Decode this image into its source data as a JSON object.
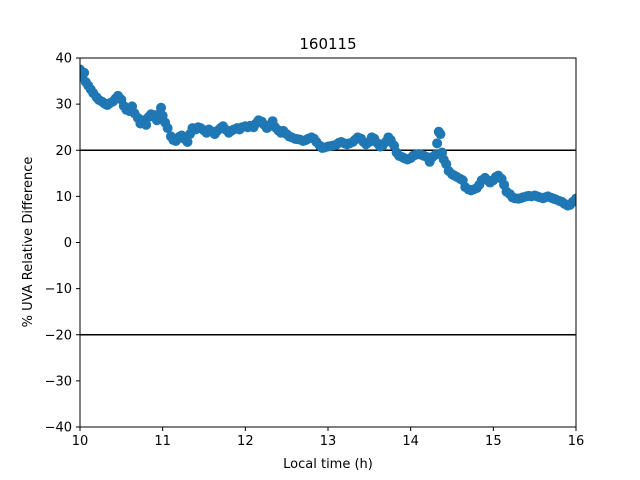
{
  "chart_data": {
    "type": "scatter",
    "title": "160115",
    "xlabel": "Local time (h)",
    "ylabel": "% UVA Relative Difference",
    "xlim": [
      10,
      16
    ],
    "ylim": [
      -40,
      40
    ],
    "xticks": [
      10,
      11,
      12,
      13,
      14,
      15,
      16
    ],
    "yticks": [
      -40,
      -30,
      -20,
      -10,
      0,
      10,
      20,
      30,
      40
    ],
    "grid": false,
    "reference_lines_y": [
      20,
      -20
    ],
    "colors": {
      "marker": "#1f77b4",
      "reference_line": "#000000",
      "axes": "#000000"
    },
    "series": [
      {
        "points": [
          [
            10.0,
            37.5
          ],
          [
            10.02,
            36.0
          ],
          [
            10.05,
            36.8
          ],
          [
            10.07,
            34.8
          ],
          [
            10.1,
            34.0
          ],
          [
            10.13,
            33.2
          ],
          [
            10.16,
            32.4
          ],
          [
            10.2,
            31.5
          ],
          [
            10.23,
            30.9
          ],
          [
            10.27,
            30.5
          ],
          [
            10.3,
            30.1
          ],
          [
            10.33,
            29.8
          ],
          [
            10.36,
            30.2
          ],
          [
            10.4,
            30.6
          ],
          [
            10.43,
            31.2
          ],
          [
            10.46,
            31.8
          ],
          [
            10.5,
            31.0
          ],
          [
            10.53,
            29.6
          ],
          [
            10.56,
            28.8
          ],
          [
            10.6,
            28.5
          ],
          [
            10.63,
            29.5
          ],
          [
            10.66,
            28.0
          ],
          [
            10.7,
            27.0
          ],
          [
            10.73,
            25.8
          ],
          [
            10.77,
            26.5
          ],
          [
            10.8,
            25.5
          ],
          [
            10.83,
            27.2
          ],
          [
            10.86,
            27.8
          ],
          [
            10.9,
            27.6
          ],
          [
            10.93,
            26.5
          ],
          [
            10.96,
            27.9
          ],
          [
            10.98,
            29.2
          ],
          [
            11.0,
            27.5
          ],
          [
            11.03,
            26.0
          ],
          [
            11.06,
            24.8
          ],
          [
            11.1,
            23.0
          ],
          [
            11.13,
            22.2
          ],
          [
            11.16,
            22.0
          ],
          [
            11.2,
            22.9
          ],
          [
            11.23,
            23.2
          ],
          [
            11.26,
            22.5
          ],
          [
            11.3,
            21.8
          ],
          [
            11.33,
            23.5
          ],
          [
            11.36,
            24.8
          ],
          [
            11.4,
            24.5
          ],
          [
            11.43,
            25.0
          ],
          [
            11.46,
            24.8
          ],
          [
            11.5,
            24.3
          ],
          [
            11.53,
            23.8
          ],
          [
            11.56,
            24.5
          ],
          [
            11.6,
            24.0
          ],
          [
            11.63,
            23.5
          ],
          [
            11.66,
            24.2
          ],
          [
            11.7,
            24.8
          ],
          [
            11.73,
            25.2
          ],
          [
            11.76,
            24.5
          ],
          [
            11.8,
            23.8
          ],
          [
            11.83,
            24.2
          ],
          [
            11.86,
            24.5
          ],
          [
            11.9,
            24.8
          ],
          [
            11.93,
            24.5
          ],
          [
            11.96,
            25.0
          ],
          [
            12.0,
            25.2
          ],
          [
            12.03,
            25.0
          ],
          [
            12.06,
            25.3
          ],
          [
            12.1,
            25.0
          ],
          [
            12.13,
            25.8
          ],
          [
            12.16,
            26.5
          ],
          [
            12.2,
            26.2
          ],
          [
            12.23,
            25.5
          ],
          [
            12.26,
            24.8
          ],
          [
            12.3,
            25.5
          ],
          [
            12.33,
            26.3
          ],
          [
            12.36,
            25.0
          ],
          [
            12.4,
            24.3
          ],
          [
            12.43,
            23.8
          ],
          [
            12.46,
            24.2
          ],
          [
            12.5,
            23.5
          ],
          [
            12.53,
            23.0
          ],
          [
            12.56,
            22.8
          ],
          [
            12.6,
            22.5
          ],
          [
            12.63,
            22.4
          ],
          [
            12.66,
            22.3
          ],
          [
            12.7,
            22.0
          ],
          [
            12.73,
            22.2
          ],
          [
            12.76,
            22.5
          ],
          [
            12.8,
            22.8
          ],
          [
            12.83,
            22.5
          ],
          [
            12.86,
            21.8
          ],
          [
            12.9,
            21.0
          ],
          [
            12.93,
            20.5
          ],
          [
            12.96,
            20.6
          ],
          [
            13.0,
            20.8
          ],
          [
            13.03,
            20.9
          ],
          [
            13.06,
            21.0
          ],
          [
            13.1,
            21.2
          ],
          [
            13.13,
            21.6
          ],
          [
            13.16,
            21.8
          ],
          [
            13.2,
            21.5
          ],
          [
            13.23,
            21.3
          ],
          [
            13.26,
            21.5
          ],
          [
            13.3,
            21.8
          ],
          [
            13.33,
            22.3
          ],
          [
            13.36,
            22.8
          ],
          [
            13.4,
            22.5
          ],
          [
            13.43,
            21.8
          ],
          [
            13.46,
            21.3
          ],
          [
            13.5,
            21.8
          ],
          [
            13.53,
            22.8
          ],
          [
            13.56,
            22.5
          ],
          [
            13.6,
            21.5
          ],
          [
            13.63,
            20.8
          ],
          [
            13.66,
            21.0
          ],
          [
            13.7,
            21.8
          ],
          [
            13.73,
            22.8
          ],
          [
            13.76,
            22.2
          ],
          [
            13.8,
            21.0
          ],
          [
            13.83,
            19.5
          ],
          [
            13.86,
            18.8
          ],
          [
            13.9,
            18.5
          ],
          [
            13.93,
            18.2
          ],
          [
            13.96,
            18.0
          ],
          [
            14.0,
            18.3
          ],
          [
            14.03,
            18.8
          ],
          [
            14.06,
            19.0
          ],
          [
            14.1,
            19.2
          ],
          [
            14.13,
            19.0
          ],
          [
            14.16,
            18.8
          ],
          [
            14.2,
            18.5
          ],
          [
            14.23,
            17.5
          ],
          [
            14.26,
            18.5
          ],
          [
            14.3,
            19.0
          ],
          [
            14.32,
            21.5
          ],
          [
            14.34,
            24.0
          ],
          [
            14.36,
            23.5
          ],
          [
            14.38,
            19.5
          ],
          [
            14.4,
            18.0
          ],
          [
            14.43,
            17.0
          ],
          [
            14.46,
            15.5
          ],
          [
            14.5,
            14.8
          ],
          [
            14.53,
            14.5
          ],
          [
            14.56,
            14.2
          ],
          [
            14.6,
            13.8
          ],
          [
            14.63,
            13.5
          ],
          [
            14.66,
            12.0
          ],
          [
            14.7,
            11.5
          ],
          [
            14.73,
            11.3
          ],
          [
            14.76,
            11.5
          ],
          [
            14.8,
            11.8
          ],
          [
            14.83,
            12.5
          ],
          [
            14.86,
            13.5
          ],
          [
            14.9,
            14.0
          ],
          [
            14.93,
            13.5
          ],
          [
            14.96,
            13.0
          ],
          [
            15.0,
            13.5
          ],
          [
            15.03,
            14.2
          ],
          [
            15.06,
            14.5
          ],
          [
            15.1,
            13.8
          ],
          [
            15.13,
            12.5
          ],
          [
            15.16,
            11.0
          ],
          [
            15.2,
            10.5
          ],
          [
            15.23,
            9.8
          ],
          [
            15.26,
            9.6
          ],
          [
            15.3,
            9.5
          ],
          [
            15.33,
            9.6
          ],
          [
            15.36,
            9.8
          ],
          [
            15.4,
            10.0
          ],
          [
            15.43,
            10.1
          ],
          [
            15.46,
            10.0
          ],
          [
            15.5,
            10.2
          ],
          [
            15.53,
            10.0
          ],
          [
            15.56,
            9.8
          ],
          [
            15.6,
            9.6
          ],
          [
            15.63,
            9.8
          ],
          [
            15.66,
            10.0
          ],
          [
            15.7,
            9.7
          ],
          [
            15.73,
            9.5
          ],
          [
            15.76,
            9.3
          ],
          [
            15.8,
            9.0
          ],
          [
            15.83,
            8.8
          ],
          [
            15.86,
            8.4
          ],
          [
            15.9,
            8.0
          ],
          [
            15.93,
            8.2
          ],
          [
            15.96,
            8.8
          ],
          [
            16.0,
            9.5
          ]
        ]
      }
    ]
  }
}
